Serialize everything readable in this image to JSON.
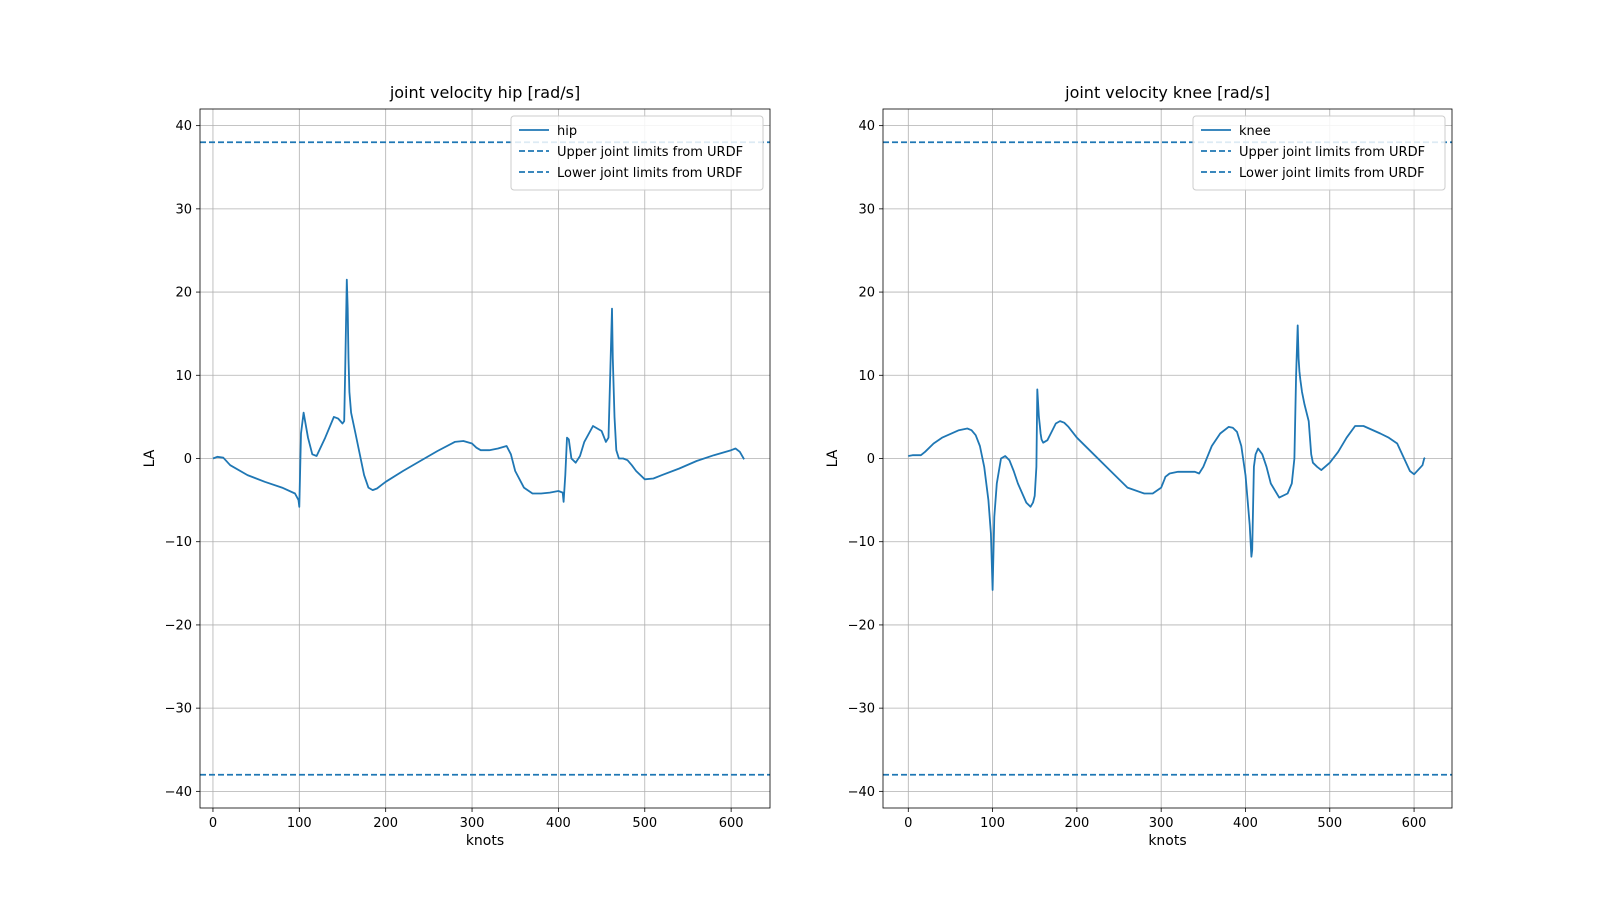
{
  "chart_data": [
    {
      "type": "line",
      "title": "joint velocity hip [rad/s]",
      "xlabel": "knots",
      "ylabel": "LA",
      "xlim": [
        -15,
        645
      ],
      "ylim": [
        -42,
        42
      ],
      "xticks": [
        0,
        100,
        200,
        300,
        400,
        500,
        600
      ],
      "yticks": [
        -40,
        -30,
        -20,
        -10,
        0,
        10,
        20,
        30,
        40
      ],
      "grid": true,
      "legend_position": "top-right",
      "color": "#1f77b4",
      "series": [
        {
          "name": "hip",
          "style": "solid",
          "x": [
            0,
            5,
            12,
            20,
            40,
            60,
            80,
            95,
            99,
            100,
            102,
            105,
            110,
            115,
            120,
            130,
            140,
            145,
            150,
            152,
            153,
            155,
            156,
            157,
            158,
            160,
            165,
            170,
            175,
            180,
            185,
            190,
            200,
            220,
            240,
            260,
            280,
            290,
            300,
            305,
            310,
            320,
            330,
            340,
            345,
            350,
            360,
            370,
            380,
            390,
            400,
            405,
            406,
            408,
            410,
            412,
            415,
            420,
            425,
            430,
            440,
            450,
            455,
            458,
            460,
            462,
            463,
            465,
            467,
            470,
            475,
            480,
            485,
            490,
            500,
            510,
            520,
            540,
            560,
            580,
            600,
            605,
            610,
            615
          ],
          "y": [
            0,
            0.2,
            0.1,
            -0.8,
            -2,
            -2.8,
            -3.5,
            -4.2,
            -5,
            -5.8,
            3,
            5.5,
            2.5,
            0.5,
            0.3,
            2.5,
            5,
            4.8,
            4.2,
            4.5,
            10,
            21.5,
            18,
            12,
            8,
            5.5,
            3,
            0.5,
            -2,
            -3.5,
            -3.8,
            -3.6,
            -2.8,
            -1.5,
            -0.3,
            0.9,
            2,
            2.1,
            1.8,
            1.3,
            1,
            1,
            1.2,
            1.5,
            0.5,
            -1.5,
            -3.5,
            -4.2,
            -4.2,
            -4.1,
            -3.9,
            -4.1,
            -5.2,
            -2,
            2.5,
            2.3,
            0,
            -0.5,
            0.3,
            2,
            3.9,
            3.3,
            2,
            2.5,
            10,
            18,
            12,
            5,
            1,
            0,
            0,
            -0.2,
            -0.8,
            -1.5,
            -2.5,
            -2.4,
            -2,
            -1.2,
            -0.3,
            0.4,
            1,
            1.2,
            0.8,
            -0.1
          ]
        },
        {
          "name": "Upper joint limits from URDF",
          "style": "dashed",
          "value": 38
        },
        {
          "name": "Lower joint limits from URDF",
          "style": "dashed",
          "value": -38
        }
      ]
    },
    {
      "type": "line",
      "title": "joint velocity knee [rad/s]",
      "xlabel": "knots",
      "ylabel": "LA",
      "xlim": [
        -30,
        645
      ],
      "ylim": [
        -42,
        42
      ],
      "xticks": [
        0,
        100,
        200,
        300,
        400,
        500,
        600
      ],
      "yticks": [
        -40,
        -30,
        -20,
        -10,
        0,
        10,
        20,
        30,
        40
      ],
      "grid": true,
      "legend_position": "top-right",
      "color": "#1f77b4",
      "series": [
        {
          "name": "knee",
          "style": "solid",
          "x": [
            0,
            5,
            15,
            20,
            30,
            40,
            60,
            70,
            75,
            80,
            85,
            90,
            95,
            98,
            100,
            102,
            105,
            110,
            115,
            120,
            125,
            130,
            140,
            145,
            148,
            150,
            152,
            153,
            155,
            156,
            157,
            158,
            160,
            165,
            170,
            175,
            180,
            185,
            190,
            200,
            220,
            240,
            260,
            280,
            290,
            300,
            304,
            305,
            310,
            320,
            330,
            340,
            345,
            350,
            360,
            370,
            380,
            385,
            390,
            395,
            400,
            405,
            407,
            408,
            410,
            412,
            415,
            420,
            425,
            430,
            440,
            450,
            455,
            458,
            460,
            462,
            463,
            464,
            465,
            467,
            470,
            475,
            478,
            480,
            485,
            490,
            500,
            510,
            520,
            530,
            540,
            560,
            570,
            580,
            595,
            600,
            610,
            612,
            613
          ],
          "y": [
            0.3,
            0.4,
            0.4,
            0.8,
            1.8,
            2.5,
            3.4,
            3.6,
            3.4,
            2.8,
            1.5,
            -1,
            -5,
            -9,
            -15.8,
            -7,
            -3,
            0,
            0.3,
            -0.2,
            -1.5,
            -3,
            -5.3,
            -5.8,
            -5.3,
            -4.5,
            -1,
            8.3,
            5,
            4,
            3,
            2.3,
            1.9,
            2.2,
            3.2,
            4.2,
            4.5,
            4.3,
            3.8,
            2.5,
            0.5,
            -1.5,
            -3.5,
            -4.2,
            -4.2,
            -3.5,
            -2.5,
            -2.2,
            -1.8,
            -1.6,
            -1.6,
            -1.6,
            -1.8,
            -1,
            1.5,
            3,
            3.8,
            3.7,
            3.2,
            1.5,
            -2,
            -8,
            -11.8,
            -11,
            -1,
            0.5,
            1.2,
            0.5,
            -1,
            -3,
            -4.7,
            -4.2,
            -3,
            0,
            10,
            16,
            12,
            10.5,
            9.5,
            8,
            6.5,
            4.5,
            0.5,
            -0.5,
            -1,
            -1.4,
            -0.5,
            0.8,
            2.5,
            3.9,
            3.9,
            3,
            2.5,
            1.8,
            -1.5,
            -1.9,
            -0.8,
            0,
            0.1
          ]
        },
        {
          "name": "Upper joint limits from URDF",
          "style": "dashed",
          "value": 38
        },
        {
          "name": "Lower joint limits from URDF",
          "style": "dashed",
          "value": -38
        }
      ]
    }
  ]
}
